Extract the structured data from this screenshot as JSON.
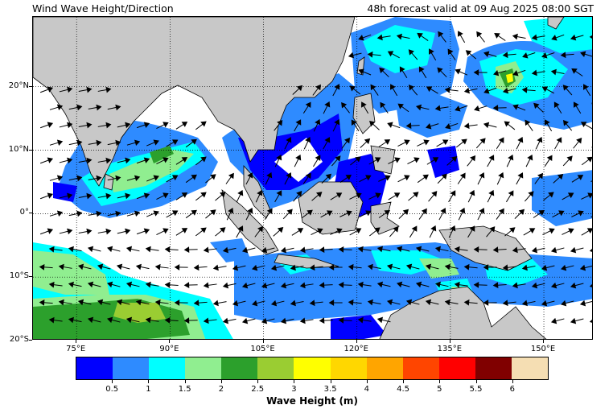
{
  "title_left": "Wind Wave Height/Direction",
  "title_right": "48h forecast valid at 09 Aug 2025 08:00 SGT",
  "map": {
    "lon_range": [
      68,
      158
    ],
    "lat_range": [
      -20,
      31
    ],
    "lat_gridlines": [
      {
        "value": 20,
        "label": "20°N"
      },
      {
        "value": 10,
        "label": "10°N"
      },
      {
        "value": 0,
        "label": "0°"
      },
      {
        "value": -10,
        "label": "10°S"
      },
      {
        "value": -20,
        "label": "20°S"
      }
    ],
    "lon_gridlines": [
      {
        "value": 75,
        "label": "75°E"
      },
      {
        "value": 90,
        "label": "90°E"
      },
      {
        "value": 105,
        "label": "105°E"
      },
      {
        "value": 120,
        "label": "120°E"
      },
      {
        "value": 135,
        "label": "135°E"
      },
      {
        "value": 150,
        "label": "150°E"
      }
    ],
    "land_color": "#c8c8c8",
    "sea_color": "#ffffff"
  },
  "colorbar": {
    "title": "Wave Height (m)",
    "colors": [
      "#0000ff",
      "#2e8bff",
      "#00ffff",
      "#90ee90",
      "#2ca02c",
      "#9acd32",
      "#ffff00",
      "#ffd700",
      "#ffa500",
      "#ff4500",
      "#ff0000",
      "#800000",
      "#f5deb3"
    ],
    "tick_labels": [
      "0.5",
      "1",
      "1.5",
      "2",
      "2.5",
      "3",
      "3.5",
      "4",
      "4.5",
      "5",
      "5.5",
      "6"
    ]
  }
}
